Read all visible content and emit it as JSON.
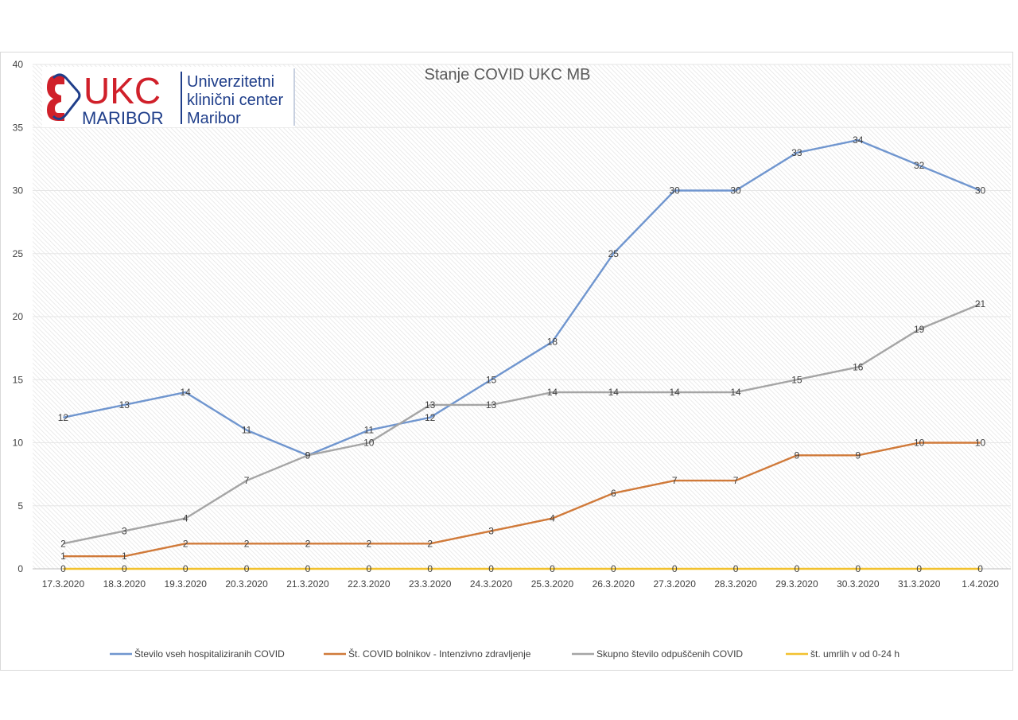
{
  "chart_data": {
    "type": "line",
    "title": "Stanje  COVID UKC MB",
    "categories": [
      "17.3.2020",
      "18.3.2020",
      "19.3.2020",
      "20.3.2020",
      "21.3.2020",
      "22.3.2020",
      "23.3.2020",
      "24.3.2020",
      "25.3.2020",
      "26.3.2020",
      "27.3.2020",
      "28.3.2020",
      "29.3.2020",
      "30.3.2020",
      "31.3.2020",
      "1.4.2020"
    ],
    "ylim": [
      0,
      40
    ],
    "yticks": [
      0,
      5,
      10,
      15,
      20,
      25,
      30,
      35,
      40
    ],
    "grid": true,
    "legend_position": "bottom",
    "series": [
      {
        "name": "Število vseh hospitaliziranih COVID",
        "color": "#7096cf",
        "values": [
          12,
          13,
          14,
          11,
          9,
          11,
          12,
          15,
          18,
          25,
          30,
          30,
          33,
          34,
          32,
          30
        ]
      },
      {
        "name": "Št. COVID bolnikov - Intenzivno zdravljenje",
        "color": "#d07a3a",
        "values": [
          1,
          1,
          2,
          2,
          2,
          2,
          2,
          3,
          4,
          6,
          7,
          7,
          9,
          9,
          10,
          10
        ]
      },
      {
        "name": "Skupno število odpuščenih COVID",
        "color": "#a5a5a5",
        "values": [
          2,
          3,
          4,
          7,
          9,
          10,
          13,
          13,
          14,
          14,
          14,
          14,
          15,
          16,
          19,
          21
        ]
      },
      {
        "name": "št. umrlih v od  0-24 h",
        "color": "#f2c12e",
        "values": [
          0,
          0,
          0,
          0,
          0,
          0,
          0,
          0,
          0,
          0,
          0,
          0,
          0,
          0,
          0,
          0
        ]
      }
    ]
  },
  "logo": {
    "ukc": "UKC",
    "maribor": "MARIBOR",
    "line1": "Univerzitetni",
    "line2": "klinični center",
    "line3": "Maribor",
    "color_blue": "#1f3e8a",
    "color_red": "#d0202a"
  }
}
